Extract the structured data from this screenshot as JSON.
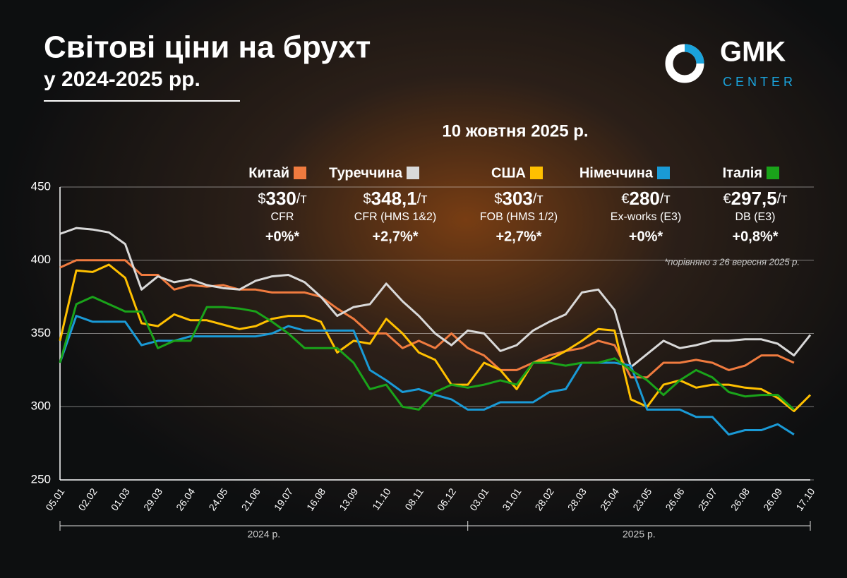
{
  "title": "Світові ціни на брухт",
  "subtitle": "у 2024-2025 рр.",
  "logo": {
    "name": "GMK",
    "sub": "CENTER"
  },
  "date": "10 жовтня 2025 р.",
  "note": "*порівняно з 26 вересня 2025 р.",
  "summary": [
    {
      "currency": "$",
      "price": "330",
      "unit": "/т",
      "basis": "CFR",
      "change": "+0%*"
    },
    {
      "currency": "$",
      "price": "348,1",
      "unit": "/т",
      "basis": "CFR (HMS 1&2)",
      "change": "+2,7%*"
    },
    {
      "currency": "$",
      "price": "303",
      "unit": "/т",
      "basis": "FOB (HMS 1/2)",
      "change": "+2,7%*"
    },
    {
      "currency": "€",
      "price": "280",
      "unit": "/т",
      "basis": "Ex-works (E3)",
      "change": "+0%*"
    },
    {
      "currency": "€",
      "price": "297,5",
      "unit": "/т",
      "basis": "DB (E3)",
      "change": "+0,8%*"
    }
  ],
  "periods": [
    "2024 р.",
    "2025 р."
  ],
  "chart_data": {
    "type": "line",
    "categories": [
      "05.01",
      null,
      "02.02",
      null,
      "01.03",
      null,
      "29.03",
      null,
      "26.04",
      null,
      "24.05",
      null,
      "21.06",
      null,
      "19.07",
      null,
      "16.08",
      null,
      "13.09",
      null,
      "11.10",
      null,
      "08.11",
      null,
      "06.12",
      null,
      "03.01",
      null,
      "31.01",
      null,
      "28.02",
      null,
      "28.03",
      null,
      "25.04",
      null,
      "23.05",
      null,
      "26.06",
      null,
      "25.07",
      null,
      "26.08",
      null,
      "26.09",
      null,
      "17.10"
    ],
    "ylim": [
      250,
      450
    ],
    "yticks": [
      250,
      300,
      350,
      400,
      450
    ],
    "grid": true,
    "series": [
      {
        "name": "Китай",
        "color": "#f07b3f",
        "values": [
          395,
          400,
          400,
          400,
          400,
          390,
          390,
          380,
          383,
          382,
          383,
          380,
          380,
          378,
          378,
          378,
          375,
          367,
          360,
          350,
          350,
          340,
          345,
          340,
          350,
          340,
          335,
          325,
          325,
          330,
          335,
          338,
          340,
          345,
          342,
          320,
          320,
          330,
          330,
          332,
          330,
          325,
          328,
          335,
          335,
          330,
          null
        ]
      },
      {
        "name": "Туреччина",
        "color": "#d9d9d9",
        "values": [
          418,
          422,
          421,
          419,
          411,
          380,
          389,
          385,
          387,
          383,
          381,
          380,
          386,
          389,
          390,
          385,
          375,
          362,
          368,
          370,
          384,
          372,
          362,
          350,
          342,
          352,
          350,
          338,
          342,
          352,
          358,
          363,
          378,
          380,
          366,
          327,
          336,
          345,
          340,
          342,
          345,
          345,
          346,
          346,
          343,
          335,
          349
        ]
      },
      {
        "name": "США",
        "color": "#ffc000",
        "values": [
          345,
          393,
          392,
          397,
          388,
          357,
          355,
          363,
          359,
          359,
          356,
          353,
          355,
          360,
          362,
          362,
          358,
          337,
          345,
          343,
          360,
          350,
          337,
          332,
          315,
          315,
          330,
          325,
          312,
          330,
          332,
          338,
          345,
          353,
          352,
          305,
          300,
          315,
          318,
          313,
          315,
          315,
          313,
          312,
          306,
          297,
          308
        ]
      },
      {
        "name": "Німеччина",
        "color": "#1a9ad6",
        "values": [
          330,
          362,
          358,
          358,
          358,
          342,
          345,
          345,
          348,
          348,
          348,
          348,
          348,
          350,
          355,
          352,
          352,
          352,
          352,
          325,
          318,
          310,
          312,
          308,
          305,
          298,
          298,
          303,
          303,
          303,
          310,
          312,
          330,
          330,
          330,
          328,
          298,
          298,
          298,
          293,
          293,
          281,
          284,
          284,
          288,
          281,
          null
        ]
      },
      {
        "name": "Італія",
        "color": "#1aa31a",
        "values": [
          330,
          370,
          375,
          370,
          365,
          365,
          340,
          345,
          345,
          368,
          368,
          367,
          365,
          358,
          350,
          340,
          340,
          340,
          330,
          312,
          315,
          300,
          298,
          310,
          315,
          313,
          315,
          318,
          315,
          330,
          330,
          328,
          330,
          330,
          333,
          325,
          318,
          308,
          318,
          325,
          320,
          310,
          307,
          308,
          308,
          298,
          null
        ]
      }
    ]
  }
}
